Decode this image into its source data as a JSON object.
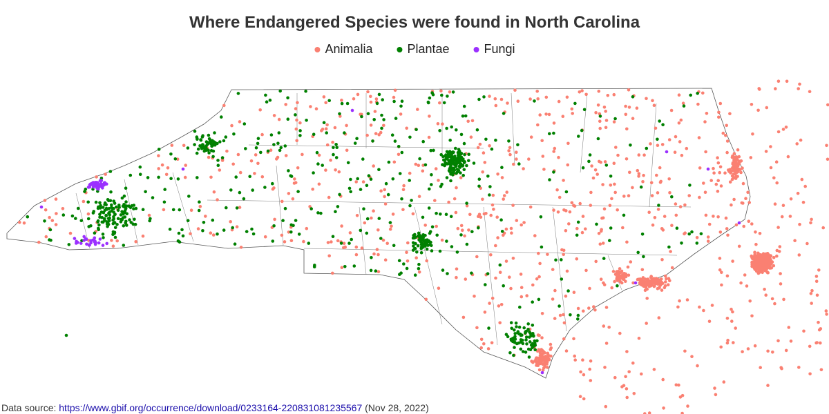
{
  "header": {
    "title": "Where Endangered Species were found in North Carolina"
  },
  "legend": [
    {
      "name": "Animalia",
      "color": "#fa8072"
    },
    {
      "name": "Plantae",
      "color": "#008000"
    },
    {
      "name": "Fungi",
      "color": "#9b30ff"
    }
  ],
  "footer": {
    "prefix": "Data source:",
    "link": "https://www.gbif.org/occurrence/download/0233164-220831081235567",
    "date": "(Nov 28, 2022)"
  }
}
